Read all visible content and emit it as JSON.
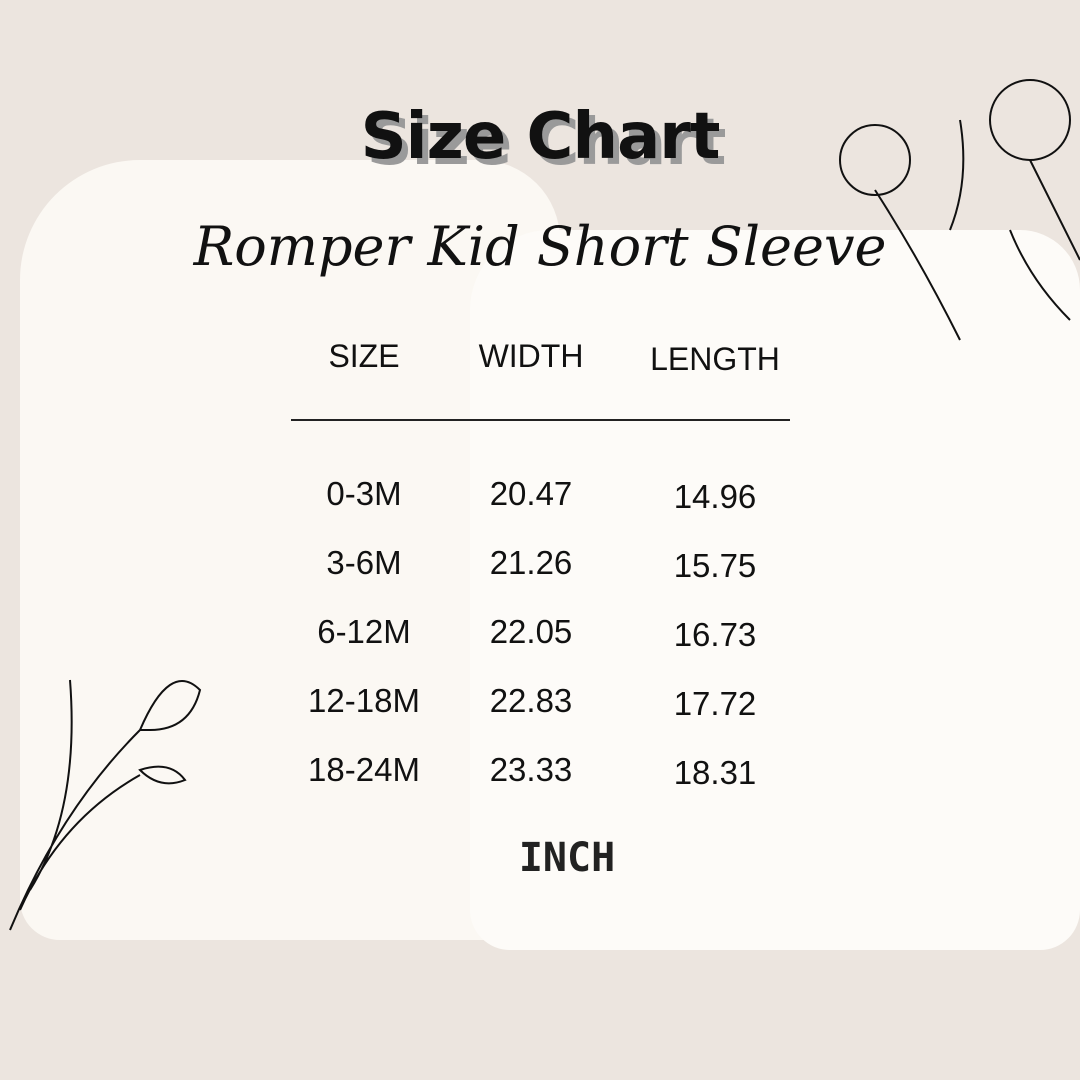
{
  "title": "Size Chart",
  "subtitle": "Romper Kid Short Sleeve",
  "chart_data": {
    "type": "table",
    "columns": [
      "SIZE",
      "WIDTH",
      "LENGTH"
    ],
    "rows": [
      [
        "0-3M",
        "20.47",
        "14.96"
      ],
      [
        "3-6M",
        "21.26",
        "15.75"
      ],
      [
        "6-12M",
        "22.05",
        "16.73"
      ],
      [
        "12-18M",
        "22.83",
        "17.72"
      ],
      [
        "18-24M",
        "23.33",
        "18.31"
      ]
    ],
    "unit": "INCH"
  },
  "colors": {
    "background": "#ece5df",
    "garment": "#fbf8f3",
    "text": "#111111"
  }
}
